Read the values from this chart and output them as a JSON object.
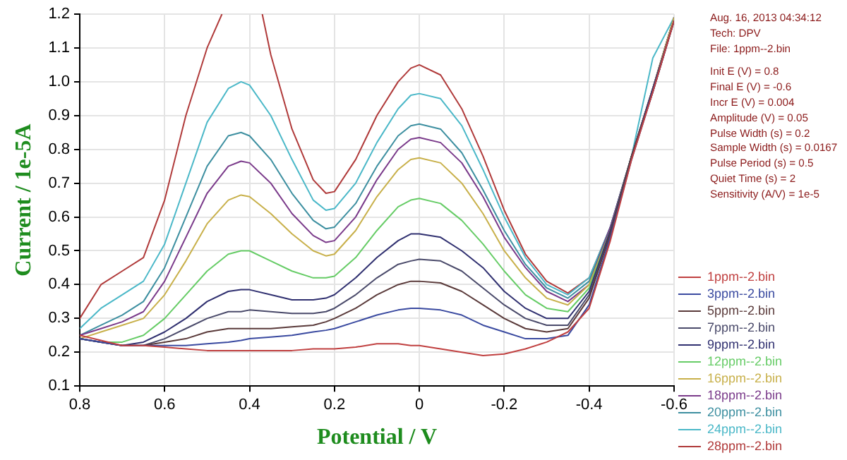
{
  "chart_data": {
    "type": "line",
    "xlabel": "Potential / V",
    "ylabel": "Current / 1e-5A",
    "xlim": [
      0.8,
      -0.6
    ],
    "xticks": [
      0.8,
      0.6,
      0.4,
      0.2,
      0,
      -0.2,
      -0.4,
      -0.6
    ],
    "ylim": [
      0.1,
      1.2
    ],
    "yticks": [
      0.1,
      0.2,
      0.3,
      0.4,
      0.5,
      0.6,
      0.7,
      0.8,
      0.9,
      {
        "value": 1.0,
        "label": "1.0"
      },
      1.1,
      1.2
    ],
    "grid": true,
    "legend": "bottom right",
    "marker": "none",
    "line_style": "solid",
    "x": [
      0.8,
      0.75,
      0.7,
      0.65,
      0.6,
      0.55,
      0.5,
      0.45,
      0.42,
      0.4,
      0.35,
      0.3,
      0.25,
      0.22,
      0.2,
      0.15,
      0.1,
      0.05,
      0.02,
      0,
      -0.05,
      -0.1,
      -0.15,
      -0.2,
      -0.25,
      -0.3,
      -0.35,
      -0.4,
      -0.45,
      -0.5,
      -0.55,
      -0.6
    ],
    "series": [
      {
        "name": "1ppm--2.bin",
        "color": "#c04040",
        "values": [
          0.25,
          0.235,
          0.22,
          0.22,
          0.215,
          0.21,
          0.205,
          0.205,
          0.205,
          0.205,
          0.205,
          0.205,
          0.21,
          0.21,
          0.21,
          0.215,
          0.225,
          0.225,
          0.22,
          0.22,
          0.21,
          0.2,
          0.19,
          0.195,
          0.21,
          0.23,
          0.26,
          0.33,
          0.53,
          0.77,
          0.97,
          1.18
        ]
      },
      {
        "name": "3ppm--2.bin",
        "color": "#3a4aa0",
        "values": [
          0.24,
          0.23,
          0.22,
          0.22,
          0.22,
          0.22,
          0.225,
          0.23,
          0.235,
          0.24,
          0.245,
          0.25,
          0.26,
          0.265,
          0.27,
          0.29,
          0.31,
          0.325,
          0.33,
          0.33,
          0.325,
          0.31,
          0.28,
          0.26,
          0.24,
          0.24,
          0.25,
          0.34,
          0.54,
          0.77,
          0.97,
          1.18
        ]
      },
      {
        "name": "5ppm--2.bin",
        "color": "#5a3a3a",
        "values": [
          0.24,
          0.23,
          0.22,
          0.22,
          0.23,
          0.24,
          0.26,
          0.27,
          0.27,
          0.27,
          0.27,
          0.275,
          0.28,
          0.29,
          0.3,
          0.33,
          0.37,
          0.4,
          0.41,
          0.41,
          0.405,
          0.38,
          0.34,
          0.3,
          0.27,
          0.26,
          0.27,
          0.36,
          0.55,
          0.78,
          0.97,
          1.18
        ]
      },
      {
        "name": "7ppm--2.bin",
        "color": "#4a4a6a",
        "values": [
          0.24,
          0.23,
          0.22,
          0.22,
          0.24,
          0.27,
          0.3,
          0.32,
          0.32,
          0.325,
          0.32,
          0.315,
          0.315,
          0.32,
          0.33,
          0.37,
          0.42,
          0.46,
          0.47,
          0.475,
          0.47,
          0.44,
          0.39,
          0.34,
          0.3,
          0.28,
          0.28,
          0.37,
          0.55,
          0.78,
          0.97,
          1.18
        ]
      },
      {
        "name": "9ppm--2.bin",
        "color": "#303070",
        "values": [
          0.24,
          0.23,
          0.22,
          0.23,
          0.26,
          0.3,
          0.35,
          0.38,
          0.385,
          0.385,
          0.37,
          0.355,
          0.355,
          0.36,
          0.37,
          0.42,
          0.48,
          0.53,
          0.55,
          0.55,
          0.54,
          0.5,
          0.45,
          0.38,
          0.33,
          0.3,
          0.3,
          0.38,
          0.56,
          0.78,
          0.98,
          1.18
        ]
      },
      {
        "name": "12ppm--2.bin",
        "color": "#66cc66",
        "values": [
          0.24,
          0.23,
          0.23,
          0.25,
          0.3,
          0.37,
          0.44,
          0.49,
          0.5,
          0.5,
          0.47,
          0.44,
          0.42,
          0.42,
          0.425,
          0.48,
          0.56,
          0.63,
          0.65,
          0.655,
          0.64,
          0.59,
          0.52,
          0.44,
          0.37,
          0.33,
          0.32,
          0.39,
          0.56,
          0.78,
          null,
          null
        ]
      },
      {
        "name": "16ppm--2.bin",
        "color": "#c8b04a",
        "values": [
          0.24,
          0.26,
          0.28,
          0.3,
          0.37,
          0.47,
          0.58,
          0.65,
          0.665,
          0.66,
          0.61,
          0.55,
          0.5,
          0.485,
          0.49,
          0.56,
          0.66,
          0.74,
          0.77,
          0.775,
          0.76,
          0.7,
          0.61,
          0.5,
          0.42,
          0.36,
          0.34,
          0.4,
          0.56,
          0.78,
          0.98,
          1.19
        ]
      },
      {
        "name": "18ppm--2.bin",
        "color": "#7a3a8a",
        "values": [
          0.25,
          0.27,
          0.29,
          0.32,
          0.41,
          0.54,
          0.67,
          0.75,
          0.765,
          0.76,
          0.7,
          0.61,
          0.545,
          0.525,
          0.53,
          0.6,
          0.71,
          0.8,
          0.83,
          0.835,
          0.82,
          0.76,
          0.66,
          0.54,
          0.45,
          0.38,
          0.35,
          0.4,
          0.57,
          0.78,
          0.98,
          1.19
        ]
      },
      {
        "name": "20ppm--2.bin",
        "color": "#3d8fa0",
        "values": [
          0.25,
          0.28,
          0.31,
          0.35,
          0.45,
          0.6,
          0.75,
          0.84,
          0.85,
          0.84,
          0.77,
          0.67,
          0.59,
          0.565,
          0.57,
          0.64,
          0.75,
          0.84,
          0.87,
          0.875,
          0.86,
          0.79,
          0.68,
          0.56,
          0.46,
          0.39,
          0.36,
          0.41,
          0.57,
          0.78,
          0.98,
          1.19
        ]
      },
      {
        "name": "24ppm--2.bin",
        "color": "#4bb8c8",
        "values": [
          0.27,
          0.33,
          0.37,
          0.41,
          0.52,
          0.7,
          0.88,
          0.98,
          1.0,
          0.99,
          0.9,
          0.77,
          0.65,
          0.62,
          0.625,
          0.7,
          0.82,
          0.92,
          0.96,
          0.965,
          0.95,
          0.87,
          0.74,
          0.6,
          0.48,
          0.4,
          0.37,
          0.42,
          0.57,
          0.78,
          1.07,
          1.19
        ]
      },
      {
        "name": "28ppm--2.bin",
        "color": "#b03a3a",
        "x": [
          0.8,
          0.75,
          0.7,
          0.65,
          0.6,
          0.55,
          0.5,
          0.465,
          0.42,
          0.37,
          0.35,
          0.3,
          0.25,
          0.22,
          0.2,
          0.15,
          0.1,
          0.05,
          0.02,
          0,
          -0.05,
          -0.1,
          -0.15,
          -0.2,
          -0.25,
          -0.3,
          -0.35,
          -0.4,
          -0.45,
          -0.5,
          -0.55,
          -0.6
        ],
        "values": [
          0.3,
          0.4,
          0.44,
          0.48,
          0.65,
          0.9,
          1.1,
          1.2,
          null,
          1.2,
          1.08,
          0.86,
          0.71,
          0.67,
          0.675,
          0.77,
          0.9,
          1.0,
          1.04,
          1.05,
          1.02,
          0.92,
          0.78,
          0.62,
          0.49,
          0.41,
          0.375,
          0.42,
          0.57,
          0.78,
          0.98,
          1.19
        ]
      }
    ],
    "annotations": [
      "Aug. 16, 2013   04:34:12",
      "Tech: DPV",
      "File: 1ppm--2.bin",
      "Init E (V) = 0.8",
      "Final E (V) = -0.6",
      "Incr E (V) = 0.004",
      "Amplitude (V) = 0.05",
      "Pulse Width (s) = 0.2",
      "Sample Width (s) = 0.0167",
      "Pulse Period (s) = 0.5",
      "Quiet Time (s) = 2",
      "Sensitivity (A/V) = 1e-5"
    ]
  }
}
